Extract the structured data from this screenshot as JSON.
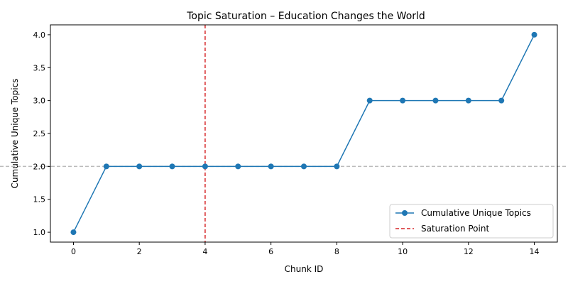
{
  "chart_data": {
    "type": "line",
    "title": "Topic Saturation – Education Changes the World",
    "xlabel": "Chunk ID",
    "ylabel": "Cumulative Unique Topics",
    "xlim": [
      -0.7,
      14.7
    ],
    "ylim": [
      0.85,
      4.15
    ],
    "xticks": [
      0,
      2,
      4,
      6,
      8,
      10,
      12,
      14
    ],
    "yticks": [
      1.0,
      1.5,
      2.0,
      2.5,
      3.0,
      3.5,
      4.0
    ],
    "x": [
      0,
      1,
      2,
      3,
      4,
      5,
      6,
      7,
      8,
      9,
      10,
      11,
      12,
      13,
      14
    ],
    "series": [
      {
        "name": "Cumulative Unique Topics",
        "values": [
          1,
          2,
          2,
          2,
          2,
          2,
          2,
          2,
          2,
          3,
          3,
          3,
          3,
          3,
          4
        ],
        "color": "#1f77b4"
      }
    ],
    "reference_lines": [
      {
        "orientation": "vertical",
        "value": 4,
        "name": "Saturation Point",
        "color": "#d62728",
        "style": "dashed"
      },
      {
        "orientation": "horizontal",
        "value": 2,
        "name": "",
        "color": "#bbbbbb",
        "style": "dashed"
      }
    ],
    "grid": false,
    "legend_position": "bottom-right"
  }
}
